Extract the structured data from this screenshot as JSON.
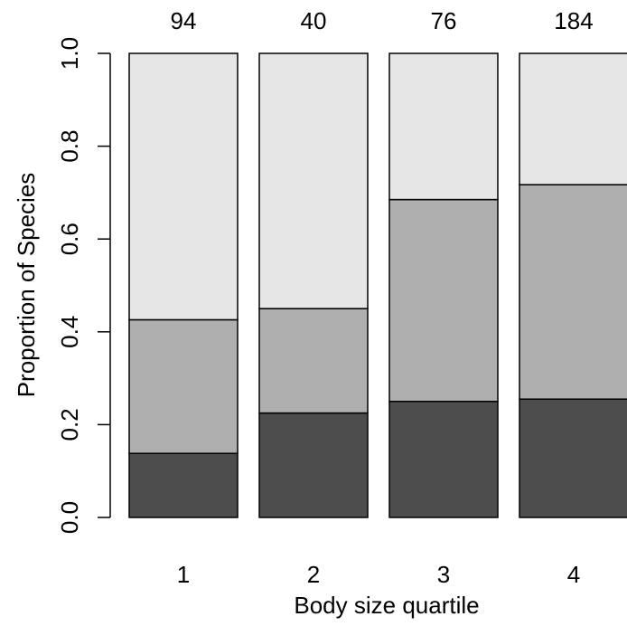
{
  "chart_data": {
    "type": "bar",
    "stacked": true,
    "xlabel": "Body size quartile",
    "ylabel": "Proportion of Species",
    "ylim": [
      0,
      1
    ],
    "yticks": [
      "0.0",
      "0.2",
      "0.4",
      "0.6",
      "0.8",
      "1.0"
    ],
    "categories": [
      "1",
      "2",
      "3",
      "4"
    ],
    "counts": [
      "94",
      "40",
      "76",
      "184"
    ],
    "series": [
      {
        "color": "#4d4d4d",
        "values": [
          0.138,
          0.225,
          0.25,
          0.255
        ]
      },
      {
        "color": "#afafaf",
        "values": [
          0.288,
          0.225,
          0.435,
          0.462
        ]
      },
      {
        "color": "#e6e6e6",
        "values": [
          0.574,
          0.55,
          0.315,
          0.283
        ]
      }
    ],
    "grid": false,
    "legend": "none"
  }
}
